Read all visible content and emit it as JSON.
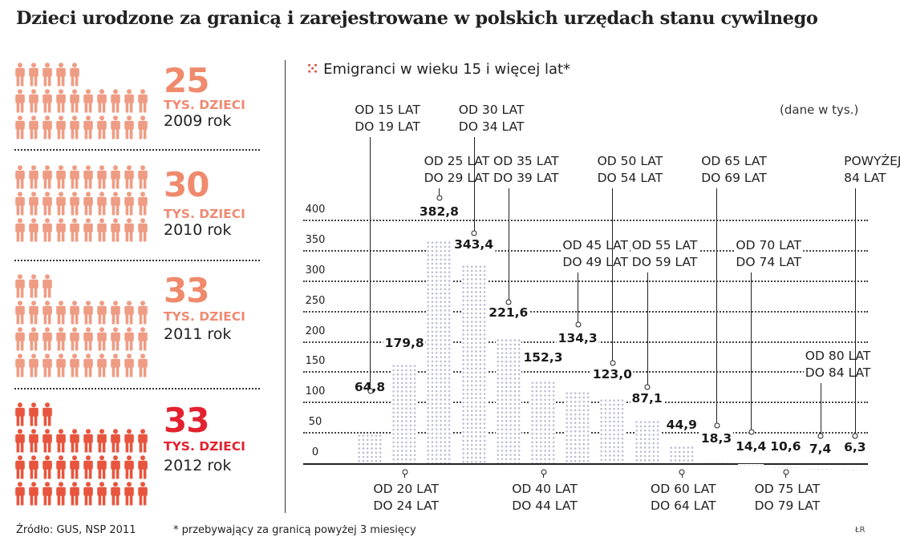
{
  "title": "Dzieci urodzone za granicą i zarejestrowane w polskich urzędach stanu cywilnego",
  "left_panel": {
    "blocks": [
      {
        "value": "25",
        "unit": "TYS. DZIECI",
        "year": "2009 rok",
        "icon_count": 25,
        "color": "#ef9c84",
        "unit_color": "#ef8a72"
      },
      {
        "value": "30",
        "unit": "TYS. DZIECI",
        "year": "2010 rok",
        "icon_count": 30,
        "color": "#ef9c84",
        "unit_color": "#ef8a72"
      },
      {
        "value": "33",
        "unit": "TYS. DZIECI",
        "year": "2011 rok",
        "icon_count": 33,
        "color": "#ef9c84",
        "unit_color": "#ef8a72"
      },
      {
        "value": "33",
        "unit": "TYS. DZIECI",
        "year": "2012 rok",
        "icon_count": 33,
        "color": "#e8553e",
        "unit_color": "#e3222f",
        "value_color": "#e3222f"
      }
    ],
    "icon": "person-icon"
  },
  "chart": {
    "title_bullet": "⁙",
    "title": "Emigranci w wieku 15 i więcej lat*",
    "units_note": "(dane w tys.)"
  },
  "chart_data": {
    "type": "bar",
    "title": "Emigranci w wieku 15 i więcej lat*",
    "xlabel": "",
    "ylabel": "",
    "units": "tys.",
    "ylim": [
      0,
      400
    ],
    "yticks": [
      0,
      50,
      100,
      150,
      200,
      250,
      300,
      350,
      400
    ],
    "grid": true,
    "categories": [
      "OD 15 LAT DO 19 LAT",
      "OD 20 LAT DO 24 LAT",
      "OD 25 LAT DO 29 LAT",
      "OD 30 LAT DO 34 LAT",
      "OD 35 LAT DO 39 LAT",
      "OD 40 LAT DO 44 LAT",
      "OD 45 LAT DO 49 LAT",
      "OD 50 LAT DO 54 LAT",
      "OD 55 LAT DO 59 LAT",
      "OD 60 LAT DO 64 LAT",
      "OD 65 LAT DO 69 LAT",
      "OD 70 LAT DO 74 LAT",
      "OD 75 LAT DO 79 LAT",
      "OD 80 LAT DO 84 LAT",
      "POWYŻEJ 84 LAT"
    ],
    "values": [
      64.8,
      179.8,
      382.8,
      343.4,
      221.6,
      152.3,
      134.3,
      123.0,
      87.1,
      44.9,
      18.3,
      14.4,
      10.6,
      7.4,
      6.3
    ],
    "value_labels": [
      "64,8",
      "179,8",
      "382,8",
      "343,4",
      "221,6",
      "152,3",
      "134,3",
      "123,0",
      "87,1",
      "44,9",
      "18,3",
      "14,4",
      "10,6",
      "7,4",
      "6,3"
    ],
    "bar_color": "#b9b8d6"
  },
  "category_labels": [
    {
      "l1": "OD 15 LAT",
      "l2": "DO 19 LAT"
    },
    {
      "l1": "OD 20 LAT",
      "l2": "DO 24 LAT"
    },
    {
      "l1": "OD 25 LAT",
      "l2": "DO 29 LAT"
    },
    {
      "l1": "OD 30 LAT",
      "l2": "DO 34 LAT"
    },
    {
      "l1": "OD 35 LAT",
      "l2": "DO 39 LAT"
    },
    {
      "l1": "OD 40 LAT",
      "l2": "DO 44 LAT"
    },
    {
      "l1": "OD 45 LAT",
      "l2": "DO 49 LAT"
    },
    {
      "l1": "OD 50 LAT",
      "l2": "DO 54 LAT"
    },
    {
      "l1": "OD 55 LAT",
      "l2": "DO 59 LAT"
    },
    {
      "l1": "OD 60 LAT",
      "l2": "DO 64 LAT"
    },
    {
      "l1": "OD 65 LAT",
      "l2": "DO 69 LAT"
    },
    {
      "l1": "OD 70 LAT",
      "l2": "DO 74 LAT"
    },
    {
      "l1": "OD 75 LAT",
      "l2": "DO 79 LAT"
    },
    {
      "l1": "OD 80 LAT",
      "l2": "DO 84 LAT"
    },
    {
      "l1": "POWYŻEJ",
      "l2": "84 LAT"
    }
  ],
  "ytick_labels": [
    "0",
    "50",
    "100",
    "150",
    "200",
    "250",
    "300",
    "350",
    "400"
  ],
  "footer": {
    "source": "Źródło: GUS, NSP 2011",
    "note": "* przebywający za granicą powyżej 3 miesięcy",
    "author": "ŁR"
  }
}
